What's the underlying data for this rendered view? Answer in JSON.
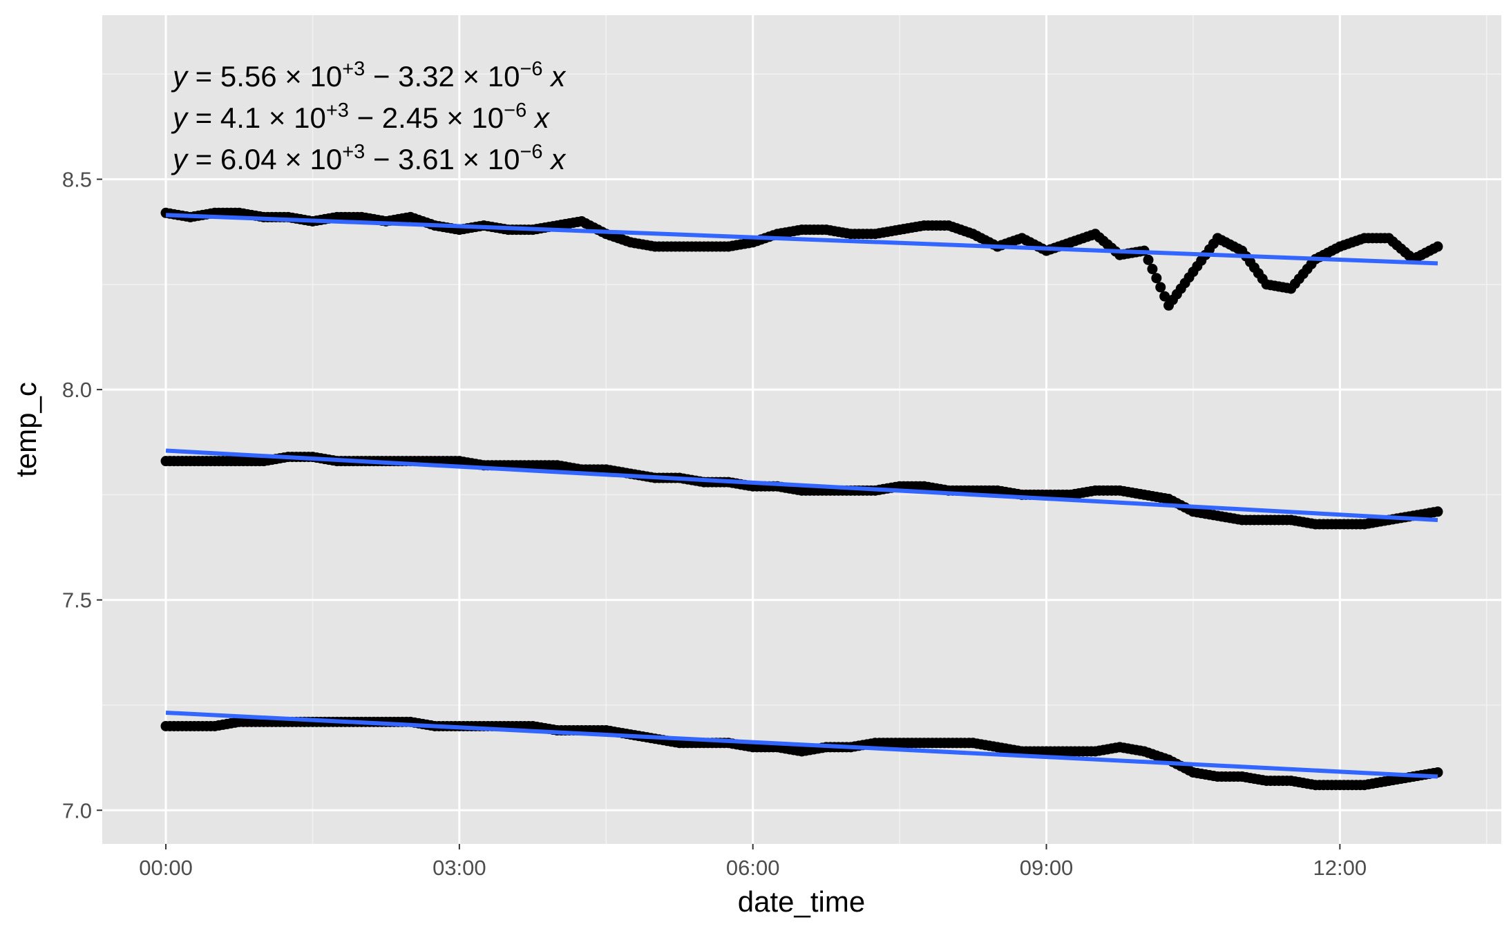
{
  "chart_data": {
    "type": "scatter",
    "title": "",
    "xlabel": "date_time",
    "ylabel": "temp_c",
    "x_ticks": [
      "00:00",
      "03:00",
      "06:00",
      "09:00",
      "12:00"
    ],
    "y_ticks": [
      "7.0",
      "7.5",
      "8.0",
      "8.5"
    ],
    "xlim_hours": [
      -0.65,
      13.65
    ],
    "ylim": [
      6.92,
      8.89
    ],
    "grid": true,
    "background": "#e5e5e5",
    "point_color": "#000000",
    "fit_line_color": "#3366ff",
    "equations": [
      {
        "lead": "y",
        "eq": " = 5.56",
        "times1": " × 10",
        "exp1": "+3",
        "minus": " − 3.32",
        "times2": " × 10",
        "exp2": "−6",
        "x": " x"
      },
      {
        "lead": "y",
        "eq": " = 4.1",
        "times1": " × 10",
        "exp1": "+3",
        "minus": " − 2.45",
        "times2": " × 10",
        "exp2": "−6",
        "x": " x"
      },
      {
        "lead": "y",
        "eq": " = 6.04",
        "times1": " × 10",
        "exp1": "+3",
        "minus": " − 3.61",
        "times2": " × 10",
        "exp2": "−6",
        "x": " x"
      }
    ],
    "series": [
      {
        "x": [
          0,
          0.25,
          0.5,
          0.75,
          1,
          1.25,
          1.5,
          1.75,
          2,
          2.25,
          2.5,
          2.75,
          3,
          3.25,
          3.5,
          3.75,
          4,
          4.25,
          4.5,
          4.75,
          5,
          5.25,
          5.5,
          5.75,
          6,
          6.25,
          6.5,
          6.75,
          7,
          7.25,
          7.5,
          7.75,
          8,
          8.25,
          8.5,
          8.75,
          9,
          9.25,
          9.5,
          9.75,
          10,
          10.25,
          10.5,
          10.75,
          11,
          11.25,
          11.5,
          11.75,
          12,
          12.25,
          12.5,
          12.75,
          13
        ],
        "y": [
          8.42,
          8.41,
          8.42,
          8.42,
          8.41,
          8.41,
          8.4,
          8.41,
          8.41,
          8.4,
          8.41,
          8.39,
          8.38,
          8.39,
          8.38,
          8.38,
          8.39,
          8.4,
          8.37,
          8.35,
          8.34,
          8.34,
          8.34,
          8.34,
          8.35,
          8.37,
          8.38,
          8.38,
          8.37,
          8.37,
          8.38,
          8.39,
          8.39,
          8.37,
          8.34,
          8.36,
          8.33,
          8.35,
          8.37,
          8.32,
          8.33,
          8.2,
          8.28,
          8.36,
          8.33,
          8.25,
          8.24,
          8.31,
          8.34,
          8.36,
          8.36,
          8.31,
          8.34
        ],
        "fit": [
          8.415,
          8.3
        ]
      },
      {
        "x": [
          0,
          0.25,
          0.5,
          0.75,
          1,
          1.25,
          1.5,
          1.75,
          2,
          2.25,
          2.5,
          2.75,
          3,
          3.25,
          3.5,
          3.75,
          4,
          4.25,
          4.5,
          4.75,
          5,
          5.25,
          5.5,
          5.75,
          6,
          6.25,
          6.5,
          6.75,
          7,
          7.25,
          7.5,
          7.75,
          8,
          8.25,
          8.5,
          8.75,
          9,
          9.25,
          9.5,
          9.75,
          10,
          10.25,
          10.5,
          10.75,
          11,
          11.25,
          11.5,
          11.75,
          12,
          12.25,
          12.5,
          12.75,
          13
        ],
        "y": [
          7.83,
          7.83,
          7.83,
          7.83,
          7.83,
          7.84,
          7.84,
          7.83,
          7.83,
          7.83,
          7.83,
          7.83,
          7.83,
          7.82,
          7.82,
          7.82,
          7.82,
          7.81,
          7.81,
          7.8,
          7.79,
          7.79,
          7.78,
          7.78,
          7.77,
          7.77,
          7.76,
          7.76,
          7.76,
          7.76,
          7.77,
          7.77,
          7.76,
          7.76,
          7.76,
          7.75,
          7.75,
          7.75,
          7.76,
          7.76,
          7.75,
          7.74,
          7.71,
          7.7,
          7.69,
          7.69,
          7.69,
          7.68,
          7.68,
          7.68,
          7.69,
          7.7,
          7.71
        ],
        "fit": [
          7.855,
          7.69
        ]
      },
      {
        "x": [
          0,
          0.25,
          0.5,
          0.75,
          1,
          1.25,
          1.5,
          1.75,
          2,
          2.25,
          2.5,
          2.75,
          3,
          3.25,
          3.5,
          3.75,
          4,
          4.25,
          4.5,
          4.75,
          5,
          5.25,
          5.5,
          5.75,
          6,
          6.25,
          6.5,
          6.75,
          7,
          7.25,
          7.5,
          7.75,
          8,
          8.25,
          8.5,
          8.75,
          9,
          9.25,
          9.5,
          9.75,
          10,
          10.25,
          10.5,
          10.75,
          11,
          11.25,
          11.5,
          11.75,
          12,
          12.25,
          12.5,
          12.75,
          13
        ],
        "y": [
          7.2,
          7.2,
          7.2,
          7.21,
          7.21,
          7.21,
          7.21,
          7.21,
          7.21,
          7.21,
          7.21,
          7.2,
          7.2,
          7.2,
          7.2,
          7.2,
          7.19,
          7.19,
          7.19,
          7.18,
          7.17,
          7.16,
          7.16,
          7.16,
          7.15,
          7.15,
          7.14,
          7.15,
          7.15,
          7.16,
          7.16,
          7.16,
          7.16,
          7.16,
          7.15,
          7.14,
          7.14,
          7.14,
          7.14,
          7.15,
          7.14,
          7.12,
          7.09,
          7.08,
          7.08,
          7.07,
          7.07,
          7.06,
          7.06,
          7.06,
          7.07,
          7.08,
          7.09
        ],
        "fit": [
          7.232,
          7.08
        ]
      }
    ]
  }
}
